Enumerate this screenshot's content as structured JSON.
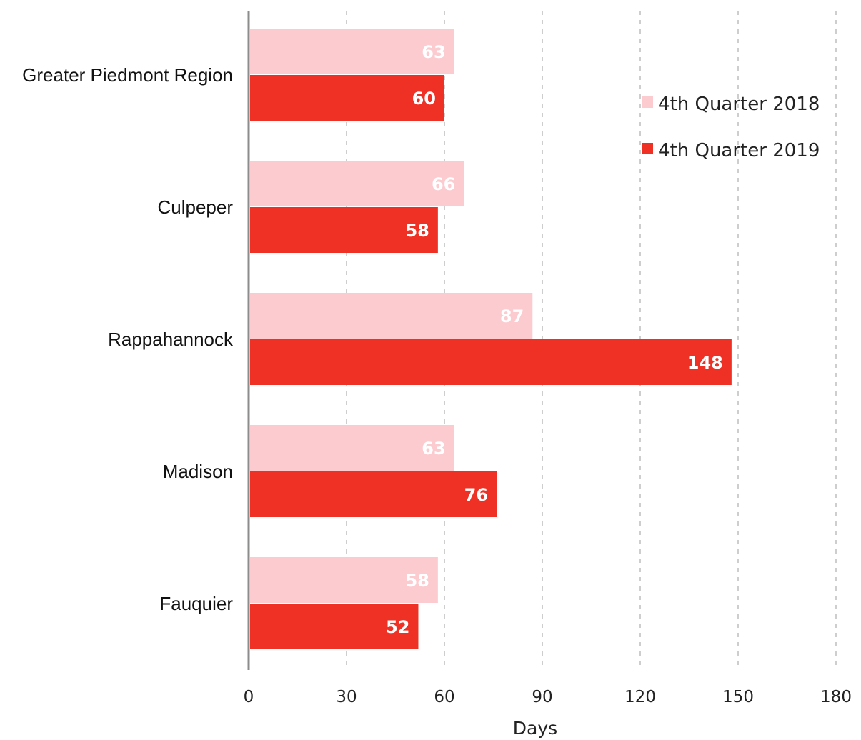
{
  "chart_data": {
    "type": "bar",
    "orientation": "horizontal",
    "categories": [
      "Greater Piedmont Region",
      "Culpeper",
      "Rappahannock",
      "Madison",
      "Fauquier"
    ],
    "series": [
      {
        "name": "4th Quarter 2018",
        "values": [
          63,
          66,
          87,
          63,
          58
        ],
        "color": "#fccbd0"
      },
      {
        "name": "4th Quarter 2019",
        "values": [
          60,
          58,
          148,
          76,
          52
        ],
        "color": "#ee3124"
      }
    ],
    "xlabel": "Days",
    "xlim": [
      0,
      180
    ],
    "xticks": [
      0,
      30,
      60,
      90,
      120,
      150,
      180
    ],
    "grid": "vertical dashed",
    "legend": "right",
    "data_labels": true
  }
}
